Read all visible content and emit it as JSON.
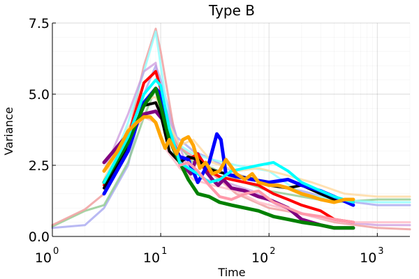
{
  "chart_data": {
    "type": "line",
    "title": "Type B",
    "xlabel": "Time",
    "ylabel": "Variance",
    "x_scale": "log10",
    "xlim": [
      1,
      2000
    ],
    "ylim": [
      0,
      7.5
    ],
    "grid": true,
    "legend": "none",
    "x_ticks": [
      {
        "value": 1,
        "base": "10",
        "exp": "0"
      },
      {
        "value": 10,
        "base": "10",
        "exp": "1"
      },
      {
        "value": 100,
        "base": "10",
        "exp": "2"
      },
      {
        "value": 1000,
        "base": "10",
        "exp": "3"
      }
    ],
    "y_ticks": [
      {
        "value": 0,
        "label": "0.0"
      },
      {
        "value": 2.5,
        "label": "2.5"
      },
      {
        "value": 5,
        "label": "5.0"
      },
      {
        "value": 7.5,
        "label": "7.5"
      }
    ],
    "series": [
      {
        "color": "#a8a8f0",
        "opacity": 0.8,
        "width": 3,
        "x": [
          1,
          2,
          3,
          5,
          7,
          9,
          10,
          14,
          20,
          30,
          50,
          100,
          200,
          400,
          1000,
          2000
        ],
        "y": [
          0.3,
          0.4,
          1.0,
          2.5,
          5.0,
          6.0,
          5.5,
          3.5,
          3.0,
          2.7,
          2.2,
          1.8,
          1.6,
          1.3,
          1.1,
          1.1
        ]
      },
      {
        "color": "#8fc98f",
        "opacity": 0.8,
        "width": 3,
        "x": [
          1,
          2,
          3,
          5,
          7,
          9,
          10,
          14,
          20,
          30,
          50,
          100,
          200,
          400,
          1000,
          2000
        ],
        "y": [
          0.35,
          0.9,
          1.1,
          2.6,
          4.2,
          5.2,
          4.9,
          3.3,
          2.6,
          2.4,
          2.0,
          1.6,
          1.4,
          1.2,
          1.3,
          1.3
        ]
      },
      {
        "color": "#f0a0a0",
        "opacity": 0.85,
        "width": 3,
        "x": [
          1,
          2,
          3,
          5,
          7,
          9,
          10,
          14,
          20,
          30,
          50,
          100,
          200,
          400,
          1000,
          2000
        ],
        "y": [
          0.4,
          0.95,
          1.5,
          3.5,
          6.0,
          7.3,
          6.5,
          3.2,
          2.8,
          2.2,
          1.5,
          1.0,
          0.8,
          0.5,
          0.3,
          0.25
        ]
      },
      {
        "color": "#90ffff",
        "opacity": 0.8,
        "width": 3,
        "x": [
          3,
          5,
          7,
          9,
          10,
          12,
          15,
          20,
          30,
          50,
          100,
          200,
          400,
          1000,
          2000
        ],
        "y": [
          1.8,
          4.0,
          5.8,
          7.2,
          6.0,
          4.0,
          3.2,
          2.9,
          2.7,
          2.5,
          2.3,
          1.5,
          1.3,
          1.2,
          1.2
        ]
      },
      {
        "color": "#cc99dd",
        "opacity": 0.75,
        "width": 3,
        "x": [
          3,
          5,
          7,
          9,
          10,
          13,
          17,
          25,
          40,
          70,
          120,
          250,
          500,
          1000,
          2000
        ],
        "y": [
          2.3,
          4.3,
          5.8,
          6.1,
          5.0,
          3.8,
          2.6,
          2.0,
          1.9,
          1.6,
          1.1,
          0.7,
          0.5,
          0.4,
          0.4
        ]
      },
      {
        "color": "#ffd9a0",
        "opacity": 0.8,
        "width": 3,
        "x": [
          3,
          5,
          7,
          9,
          11,
          15,
          20,
          30,
          50,
          80,
          130,
          250,
          500,
          1000,
          2000
        ],
        "y": [
          2.0,
          3.8,
          4.8,
          4.9,
          4.2,
          3.2,
          3.4,
          2.6,
          2.3,
          2.4,
          2.2,
          1.9,
          1.5,
          1.4,
          1.4
        ]
      },
      {
        "color": "#ffc0cb",
        "opacity": 0.9,
        "width": 3,
        "x": [
          3,
          5,
          7,
          9,
          11,
          15,
          20,
          30,
          50,
          80,
          130,
          250,
          500,
          1000,
          2000
        ],
        "y": [
          1.9,
          3.4,
          4.2,
          4.0,
          3.1,
          2.4,
          2.0,
          1.8,
          1.6,
          1.2,
          1.0,
          0.7,
          0.5,
          0.5,
          0.5
        ]
      },
      {
        "color": "#800080",
        "opacity": 1,
        "width": 5,
        "x": [
          3,
          5,
          7,
          9,
          11,
          13,
          16,
          19,
          22,
          26,
          30,
          34,
          38,
          45,
          60,
          80,
          100,
          150,
          200,
          300,
          400,
          600
        ],
        "y": [
          2.6,
          3.6,
          4.3,
          4.4,
          4.0,
          3.3,
          2.5,
          2.2,
          2.9,
          2.3,
          2.0,
          1.8,
          2.0,
          1.7,
          1.6,
          1.4,
          1.3,
          1.0,
          0.6,
          0.4,
          0.3,
          0.3
        ]
      },
      {
        "color": "#ff0000",
        "opacity": 1,
        "width": 4,
        "x": [
          3,
          5,
          7,
          9,
          10,
          12,
          15,
          18,
          22,
          28,
          35,
          45,
          60,
          80,
          110,
          150,
          200,
          300,
          400,
          600
        ],
        "y": [
          1.8,
          3.5,
          5.4,
          5.8,
          5.2,
          3.6,
          2.8,
          2.7,
          2.9,
          2.3,
          2.1,
          2.0,
          1.9,
          1.8,
          1.5,
          1.3,
          1.1,
          0.9,
          0.6,
          0.5
        ]
      },
      {
        "color": "#000000",
        "opacity": 1,
        "width": 4,
        "x": [
          3,
          5,
          7,
          9,
          10,
          12,
          15,
          18,
          22,
          27,
          32,
          40,
          55,
          75,
          100,
          150,
          200,
          300,
          400,
          600
        ],
        "y": [
          1.7,
          3.2,
          4.6,
          4.7,
          4.3,
          3.0,
          2.6,
          2.8,
          2.7,
          2.4,
          2.3,
          2.2,
          2.1,
          2.0,
          1.8,
          1.7,
          1.8,
          1.5,
          1.3,
          1.2
        ]
      },
      {
        "color": "#0000ff",
        "opacity": 1,
        "width": 5,
        "x": [
          3,
          5,
          7,
          9,
          10,
          12,
          15,
          18,
          22,
          28,
          33,
          36,
          40,
          50,
          70,
          100,
          150,
          200,
          300,
          400,
          600
        ],
        "y": [
          1.5,
          3.0,
          4.7,
          5.2,
          5.0,
          3.5,
          2.8,
          2.7,
          1.9,
          2.6,
          3.6,
          3.4,
          2.2,
          2.1,
          2.0,
          1.9,
          2.0,
          1.8,
          1.6,
          1.4,
          1.1
        ]
      },
      {
        "color": "#008000",
        "opacity": 1,
        "width": 5,
        "x": [
          3,
          5,
          7,
          9,
          10,
          12,
          15,
          18,
          22,
          28,
          35,
          45,
          60,
          80,
          110,
          150,
          200,
          300,
          400,
          600
        ],
        "y": [
          1.9,
          3.3,
          4.6,
          5.2,
          4.6,
          3.4,
          2.6,
          2.0,
          1.5,
          1.4,
          1.2,
          1.1,
          1.0,
          0.9,
          0.7,
          0.6,
          0.5,
          0.4,
          0.3,
          0.3
        ]
      },
      {
        "color": "#00ffff",
        "opacity": 1,
        "width": 4,
        "x": [
          3,
          5,
          7,
          9,
          10,
          12,
          15,
          18,
          22,
          28,
          35,
          45,
          60,
          80,
          110,
          150,
          200,
          300,
          400,
          600
        ],
        "y": [
          1.9,
          3.5,
          5.0,
          5.5,
          5.3,
          3.8,
          2.6,
          2.4,
          2.2,
          1.9,
          2.0,
          2.3,
          2.4,
          2.5,
          2.6,
          2.3,
          1.9,
          1.6,
          1.4,
          1.2
        ]
      },
      {
        "color": "#ffa500",
        "opacity": 1,
        "width": 5,
        "x": [
          3,
          4,
          5,
          6,
          7,
          8,
          9,
          10,
          11,
          12,
          14,
          16,
          18,
          20,
          23,
          26,
          30,
          35,
          40,
          50,
          60,
          70,
          80,
          100,
          120,
          150,
          200,
          250,
          300,
          400,
          500,
          600
        ],
        "y": [
          2.3,
          3.0,
          3.7,
          4.0,
          4.2,
          4.2,
          4.0,
          3.5,
          3.1,
          3.4,
          2.9,
          3.4,
          3.5,
          3.2,
          2.4,
          2.6,
          2.2,
          2.3,
          2.7,
          2.2,
          2.0,
          2.2,
          1.9,
          1.8,
          1.8,
          1.7,
          1.5,
          1.4,
          1.3,
          1.2,
          1.3,
          1.3
        ]
      },
      {
        "color": "#ff99aa",
        "opacity": 1,
        "width": 4,
        "x": [
          15,
          18,
          22,
          28,
          35,
          45,
          60,
          80,
          110,
          150,
          200,
          300,
          400,
          600
        ],
        "y": [
          2.5,
          2.6,
          2.3,
          1.8,
          1.4,
          1.3,
          1.5,
          1.6,
          1.2,
          1.0,
          0.8,
          0.7,
          0.6,
          0.5
        ]
      }
    ]
  }
}
